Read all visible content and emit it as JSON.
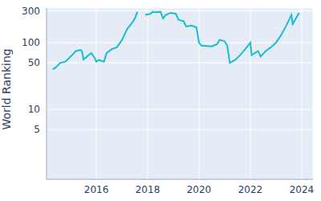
{
  "chart_data": {
    "type": "line",
    "y_label": "World Ranking",
    "log": "y",
    "grid": true,
    "color": "#17becf",
    "xlim": [
      2014.06,
      2024.44
    ],
    "xticks": [
      2016,
      2018,
      2020,
      2022,
      2024
    ],
    "ylim": [
      0.9,
      330
    ],
    "yticks": [
      5,
      10,
      50,
      100,
      300
    ],
    "x": [
      2014.3,
      2014.4,
      2014.6,
      2014.8,
      2015.0,
      2015.2,
      2015.4,
      2015.45,
      2015.5,
      2015.7,
      2015.8,
      2015.95,
      2016.0,
      2016.1,
      2016.3,
      2016.4,
      2016.6,
      2016.8,
      2017.0,
      2017.2,
      2017.4,
      2017.5,
      2017.6,
      2017.75,
      2017.9,
      2018.1,
      2018.2,
      2018.3,
      2018.5,
      2018.6,
      2018.7,
      2018.9,
      2019.1,
      2019.2,
      2019.4,
      2019.5,
      2019.7,
      2019.9,
      2020.0,
      2020.1,
      2020.5,
      2020.7,
      2020.8,
      2021.0,
      2021.1,
      2021.2,
      2021.4,
      2021.6,
      2021.8,
      2022.0,
      2022.05,
      2022.3,
      2022.4,
      2022.6,
      2022.8,
      2023.0,
      2023.2,
      2023.4,
      2023.6,
      2023.65,
      2023.8,
      2023.9
    ],
    "values": [
      40,
      42,
      50,
      52,
      62,
      75,
      78,
      72,
      56,
      65,
      70,
      58,
      52,
      55,
      52,
      70,
      80,
      85,
      110,
      160,
      200,
      230,
      290,
      null,
      260,
      270,
      290,
      285,
      290,
      230,
      260,
      280,
      270,
      220,
      210,
      175,
      180,
      170,
      100,
      90,
      88,
      95,
      110,
      105,
      90,
      50,
      55,
      65,
      80,
      100,
      65,
      75,
      62,
      75,
      85,
      100,
      130,
      180,
      260,
      190,
      240,
      280
    ]
  }
}
